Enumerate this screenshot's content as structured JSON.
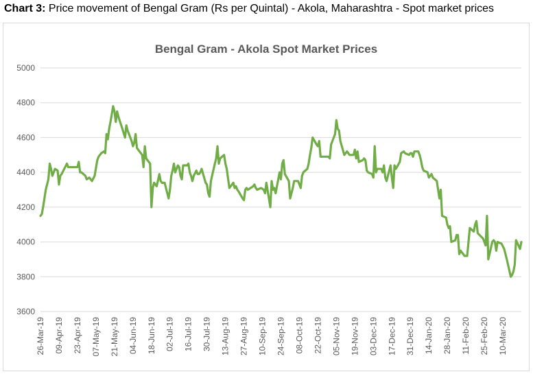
{
  "caption": {
    "prefix": "Chart 3:",
    "text": "Price movement of Bengal Gram (Rs per Quintal) - Akola, Maharashtra - Spot market prices"
  },
  "chart_data": {
    "type": "line",
    "title": "Bengal Gram - Akola Spot Market Prices",
    "xlabel": "",
    "ylabel": "",
    "ylim": [
      3600,
      5000
    ],
    "yticks": [
      3600,
      3800,
      4000,
      4200,
      4400,
      4600,
      4800,
      5000
    ],
    "x_range": [
      "2019-03-26",
      "2020-03-24"
    ],
    "xtick_labels": [
      "26-Mar-19",
      "09-Apr-19",
      "23-Apr-19",
      "07-May-19",
      "21-May-19",
      "04-Jun-19",
      "18-Jun-19",
      "02-Jul-19",
      "16-Jul-19",
      "30-Jul-19",
      "13-Aug-19",
      "27-Aug-19",
      "10-Sep-19",
      "24-Sep-19",
      "08-Oct-19",
      "22-Oct-19",
      "05-Nov-19",
      "19-Nov-19",
      "03-Dec-19",
      "17-Dec-19",
      "31-Dec-19",
      "14-Jan-20",
      "28-Jan-20",
      "11-Feb-20",
      "25-Feb-20",
      "10-Mar-20"
    ],
    "grid": true,
    "legend": "none",
    "color": "#70ad47",
    "series": [
      {
        "x": [
          "2019-03-26",
          "2019-03-27",
          "2019-03-28",
          "2019-03-30",
          "2019-04-01",
          "2019-04-02",
          "2019-04-03",
          "2019-04-04",
          "2019-04-05",
          "2019-04-06",
          "2019-04-08",
          "2019-04-09",
          "2019-04-10",
          "2019-04-11",
          "2019-04-13",
          "2019-04-15",
          "2019-04-16",
          "2019-04-18",
          "2019-04-19",
          "2019-04-20",
          "2019-04-22",
          "2019-04-23",
          "2019-04-24",
          "2019-04-25",
          "2019-04-26",
          "2019-04-29",
          "2019-04-30",
          "2019-05-02",
          "2019-05-03",
          "2019-05-04",
          "2019-05-06",
          "2019-05-08",
          "2019-05-09",
          "2019-05-10",
          "2019-05-11",
          "2019-05-13",
          "2019-05-14",
          "2019-05-15",
          "2019-05-16",
          "2019-05-17",
          "2019-05-18",
          "2019-05-20",
          "2019-05-21",
          "2019-05-22",
          "2019-05-23",
          "2019-05-24",
          "2019-05-27",
          "2019-05-29",
          "2019-05-30",
          "2019-05-31",
          "2019-06-03",
          "2019-06-04",
          "2019-06-05",
          "2019-06-06",
          "2019-06-07",
          "2019-06-08",
          "2019-06-11",
          "2019-06-12",
          "2019-06-13",
          "2019-06-14",
          "2019-06-17",
          "2019-06-18",
          "2019-06-19",
          "2019-06-20",
          "2019-06-21",
          "2019-06-22",
          "2019-06-24",
          "2019-06-25",
          "2019-06-26",
          "2019-06-27",
          "2019-06-28",
          "2019-07-01",
          "2019-07-02",
          "2019-07-03",
          "2019-07-04",
          "2019-07-05",
          "2019-07-06",
          "2019-07-08",
          "2019-07-09",
          "2019-07-10",
          "2019-07-11",
          "2019-07-12",
          "2019-07-15",
          "2019-07-16",
          "2019-07-17",
          "2019-07-18",
          "2019-07-19",
          "2019-07-20",
          "2019-07-22",
          "2019-07-23",
          "2019-07-24",
          "2019-07-25",
          "2019-07-26",
          "2019-07-29",
          "2019-07-30",
          "2019-07-31",
          "2019-08-01",
          "2019-08-02",
          "2019-08-05",
          "2019-08-06",
          "2019-08-07",
          "2019-08-08",
          "2019-08-09",
          "2019-08-12",
          "2019-08-13",
          "2019-08-14",
          "2019-08-16",
          "2019-08-19",
          "2019-08-20",
          "2019-08-21",
          "2019-08-22",
          "2019-08-23",
          "2019-08-26",
          "2019-08-27",
          "2019-08-28",
          "2019-08-29",
          "2019-08-30",
          "2019-09-03",
          "2019-09-04",
          "2019-09-05",
          "2019-09-06",
          "2019-09-09",
          "2019-09-11",
          "2019-09-12",
          "2019-09-13",
          "2019-09-16",
          "2019-09-17",
          "2019-09-18",
          "2019-09-19",
          "2019-09-20",
          "2019-09-23",
          "2019-09-24",
          "2019-09-25",
          "2019-09-26",
          "2019-09-27",
          "2019-09-30",
          "2019-10-01",
          "2019-10-03",
          "2019-10-04",
          "2019-10-07",
          "2019-10-09",
          "2019-10-10",
          "2019-10-11",
          "2019-10-14",
          "2019-10-15",
          "2019-10-16",
          "2019-10-17",
          "2019-10-18",
          "2019-10-21",
          "2019-10-22",
          "2019-10-23",
          "2019-10-24",
          "2019-10-25",
          "2019-10-29",
          "2019-10-30",
          "2019-10-31",
          "2019-11-01",
          "2019-11-04",
          "2019-11-05",
          "2019-11-06",
          "2019-11-07",
          "2019-11-08",
          "2019-11-11",
          "2019-11-13",
          "2019-11-14",
          "2019-11-15",
          "2019-11-18",
          "2019-11-19",
          "2019-11-20",
          "2019-11-21",
          "2019-11-22",
          "2019-11-25",
          "2019-11-26",
          "2019-11-27",
          "2019-11-28",
          "2019-11-29",
          "2019-12-02",
          "2019-12-03",
          "2019-12-04",
          "2019-12-05",
          "2019-12-06",
          "2019-12-09",
          "2019-12-10",
          "2019-12-11",
          "2019-12-12",
          "2019-12-13",
          "2019-12-16",
          "2019-12-17",
          "2019-12-18",
          "2019-12-19",
          "2019-12-20",
          "2019-12-23",
          "2019-12-24",
          "2019-12-26",
          "2019-12-27",
          "2019-12-30",
          "2019-12-31",
          "2020-01-01",
          "2020-01-02",
          "2020-01-03",
          "2020-01-06",
          "2020-01-07",
          "2020-01-08",
          "2020-01-09",
          "2020-01-10",
          "2020-01-13",
          "2020-01-14",
          "2020-01-15",
          "2020-01-16",
          "2020-01-17",
          "2020-01-20",
          "2020-01-21",
          "2020-01-22",
          "2020-01-23",
          "2020-01-24",
          "2020-01-27",
          "2020-01-28",
          "2020-01-29",
          "2020-01-30",
          "2020-01-31",
          "2020-02-03",
          "2020-02-04",
          "2020-02-05",
          "2020-02-06",
          "2020-02-07",
          "2020-02-10",
          "2020-02-11",
          "2020-02-12",
          "2020-02-13",
          "2020-02-14",
          "2020-02-17",
          "2020-02-18",
          "2020-02-19",
          "2020-02-20",
          "2020-02-24",
          "2020-02-25",
          "2020-02-26",
          "2020-02-27",
          "2020-02-28",
          "2020-03-02",
          "2020-03-03",
          "2020-03-04",
          "2020-03-05",
          "2020-03-06",
          "2020-03-09",
          "2020-03-11",
          "2020-03-12",
          "2020-03-13",
          "2020-03-16",
          "2020-03-17",
          "2020-03-18",
          "2020-03-19",
          "2020-03-20",
          "2020-03-23",
          "2020-03-24"
        ],
        "values": [
          4150,
          4160,
          4200,
          4300,
          4360,
          4450,
          4420,
          4380,
          4400,
          4420,
          4410,
          4330,
          4380,
          4390,
          4420,
          4450,
          4430,
          4430,
          4430,
          4430,
          4430,
          4430,
          4460,
          4400,
          4400,
          4380,
          4360,
          4370,
          4360,
          4350,
          4380,
          4470,
          4490,
          4500,
          4510,
          4520,
          4510,
          4620,
          4590,
          4650,
          4690,
          4780,
          4750,
          4690,
          4750,
          4720,
          4650,
          4600,
          4670,
          4640,
          4580,
          4550,
          4570,
          4620,
          4540,
          4530,
          4500,
          4430,
          4550,
          4480,
          4450,
          4200,
          4310,
          4340,
          4330,
          4320,
          4390,
          4350,
          4340,
          4340,
          4340,
          4250,
          4300,
          4380,
          4410,
          4450,
          4400,
          4440,
          4430,
          4380,
          4360,
          4440,
          4440,
          4450,
          4400,
          4380,
          4350,
          4380,
          4410,
          4390,
          4390,
          4400,
          4420,
          4340,
          4330,
          4280,
          4260,
          4350,
          4450,
          4480,
          4550,
          4450,
          4480,
          4500,
          4450,
          4420,
          4310,
          4340,
          4310,
          4320,
          4300,
          4290,
          4250,
          4240,
          4300,
          4310,
          4300,
          4320,
          4330,
          4310,
          4300,
          4310,
          4300,
          4280,
          4340,
          4200,
          4350,
          4300,
          4310,
          4280,
          4400,
          4360,
          4450,
          4470,
          4390,
          4350,
          4250,
          4310,
          4350,
          4350,
          4310,
          4380,
          4400,
          4420,
          4450,
          4500,
          4540,
          4600,
          4560,
          4550,
          4580,
          4490,
          4490,
          4490,
          4490,
          4480,
          4560,
          4620,
          4700,
          4650,
          4640,
          4580,
          4500,
          4520,
          4510,
          4500,
          4500,
          4530,
          4480,
          4520,
          4460,
          4470,
          4480,
          4470,
          4410,
          4400,
          4390,
          4370,
          4550,
          4400,
          4420,
          4420,
          4400,
          4440,
          4370,
          4350,
          4440,
          4370,
          4310,
          4440,
          4420,
          4460,
          4510,
          4520,
          4510,
          4500,
          4510,
          4510,
          4490,
          4520,
          4520,
          4500,
          4470,
          4430,
          4410,
          4400,
          4370,
          4380,
          4390,
          4370,
          4350,
          4300,
          4250,
          4300,
          4150,
          4140,
          4100,
          4080,
          4090,
          4000,
          4010,
          4040,
          4040,
          3930,
          3950,
          3920,
          3920,
          3920,
          4000,
          4080,
          4060,
          4100,
          4120,
          4050,
          4020,
          4000,
          3980,
          4150,
          3900,
          4000,
          4010,
          4000,
          3950,
          4000,
          3990,
          3960,
          3930,
          3900,
          3800,
          3810,
          3830,
          3870,
          4010,
          3960,
          4000
        ]
      }
    ]
  }
}
